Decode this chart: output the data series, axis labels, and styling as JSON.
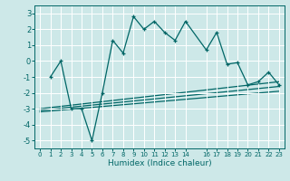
{
  "xlabel": "Humidex (Indice chaleur)",
  "bg_color": "#cde8e8",
  "grid_color": "#ffffff",
  "line_color": "#006666",
  "xlim": [
    -0.5,
    23.5
  ],
  "ylim": [
    -5.5,
    3.5
  ],
  "yticks": [
    -5,
    -4,
    -3,
    -2,
    -1,
    0,
    1,
    2,
    3
  ],
  "xtick_pos": [
    0,
    1,
    2,
    3,
    4,
    5,
    6,
    7,
    8,
    9,
    10,
    11,
    12,
    13,
    14,
    16,
    17,
    18,
    19,
    20,
    21,
    22,
    23
  ],
  "xtick_labels": [
    "0",
    "1",
    "2",
    "3",
    "4",
    "5",
    "6",
    "7",
    "8",
    "9",
    "10",
    "11",
    "12",
    "13",
    "14",
    "16",
    "17",
    "18",
    "19",
    "20",
    "21",
    "22",
    "23"
  ],
  "series_main": {
    "x": [
      1,
      2,
      3,
      4,
      5,
      6,
      7,
      8,
      9,
      10,
      11,
      12,
      13,
      14,
      16,
      17,
      18,
      19,
      20,
      21,
      22,
      23
    ],
    "y": [
      -1,
      0,
      -3,
      -3,
      -5,
      -2,
      1.3,
      0.5,
      2.8,
      2.0,
      2.5,
      1.8,
      1.3,
      2.5,
      0.7,
      1.8,
      -0.2,
      -0.1,
      -1.5,
      -1.3,
      -0.7,
      -1.5
    ]
  },
  "trend_lines": [
    {
      "x": [
        0,
        23
      ],
      "y": [
        -3.0,
        -1.3
      ]
    },
    {
      "x": [
        0,
        23
      ],
      "y": [
        -3.1,
        -1.6
      ]
    },
    {
      "x": [
        0,
        23
      ],
      "y": [
        -3.2,
        -1.9
      ]
    }
  ]
}
